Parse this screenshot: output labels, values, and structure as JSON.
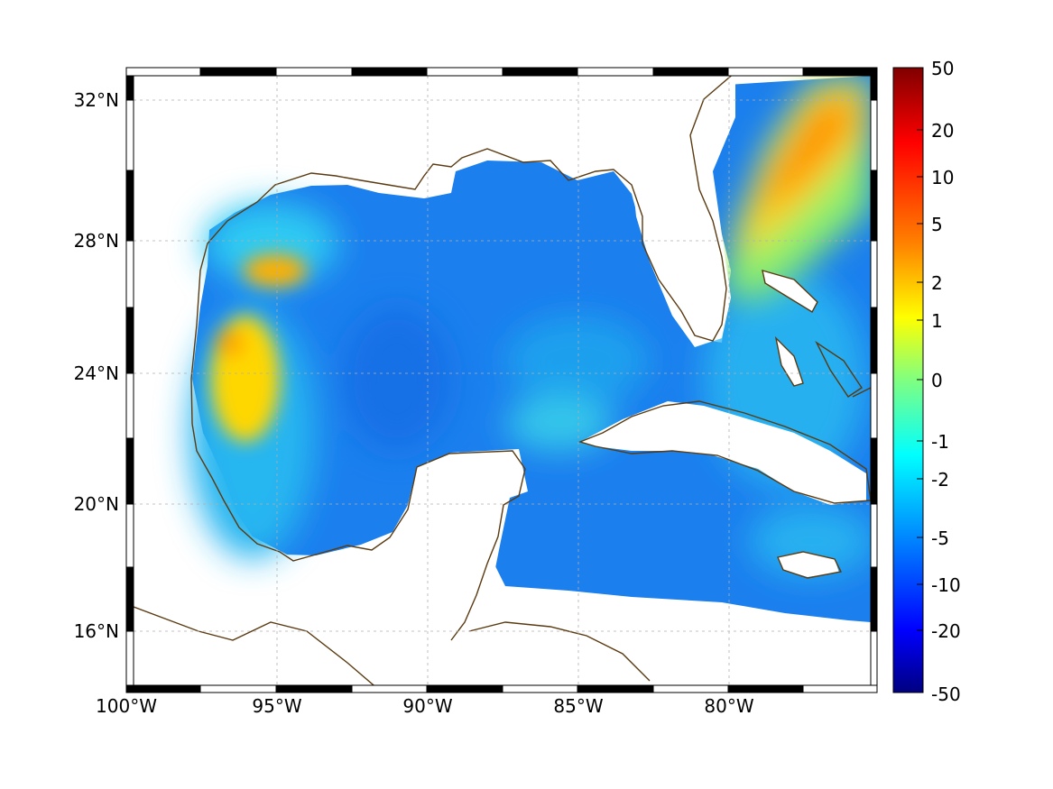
{
  "map": {
    "lon_ticks": [
      "100°W",
      "95°W",
      "90°W",
      "85°W",
      "80°W"
    ],
    "lat_ticks": [
      "32°N",
      "28°N",
      "24°N",
      "20°N",
      "16°N"
    ],
    "extent": {
      "lon": [
        -100,
        -75
      ],
      "lat": [
        14.3,
        33
      ]
    },
    "projection_frame": "alternating black/white border",
    "grid": true,
    "coastline_color": "#5a3a10",
    "land_color": "#ffffff",
    "field": {
      "description_colormap": "jet",
      "features": [
        {
          "name": "Gulf Stream high",
          "level": "5 to 10"
        },
        {
          "name": "western Gulf high",
          "level": "1 to 5"
        },
        {
          "name": "central Gulf low",
          "level": "-5"
        }
      ]
    }
  },
  "colorbar": {
    "tick_labels": [
      "50",
      "20",
      "10",
      "5",
      "2",
      "1",
      "0",
      "-1",
      "-2",
      "-5",
      "-10",
      "-20",
      "-50"
    ],
    "range": [
      -50,
      50
    ],
    "colors": [
      "#800000",
      "#ff0000",
      "#ff8000",
      "#ffff00",
      "#80ff80",
      "#00ffff",
      "#0080ff",
      "#0000ff",
      "#000080"
    ]
  }
}
